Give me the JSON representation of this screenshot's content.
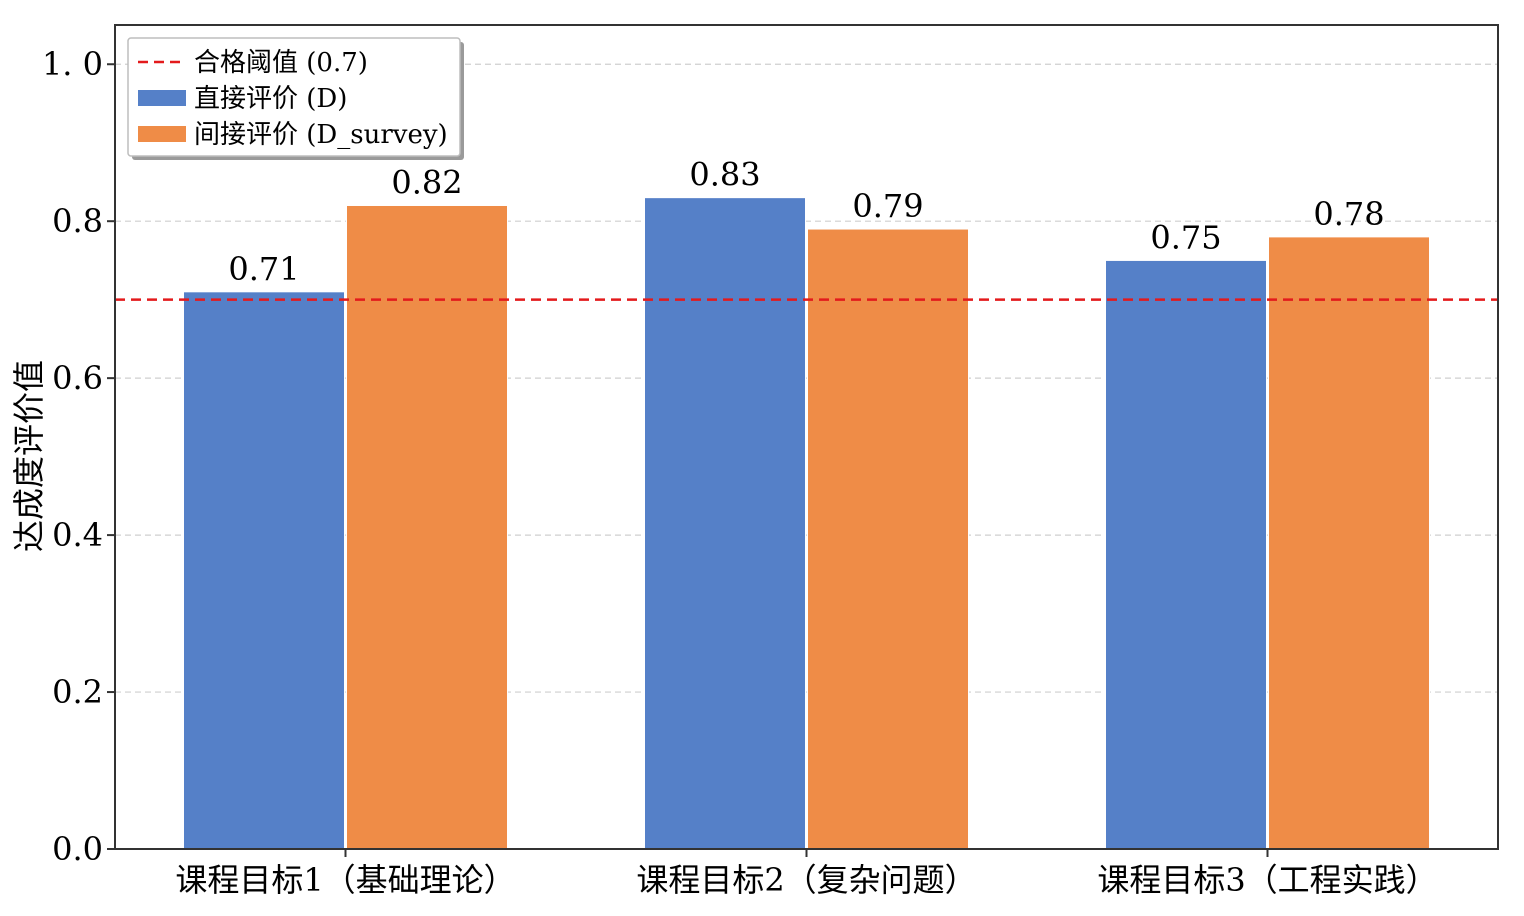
{
  "chart_data": {
    "type": "bar",
    "title": "",
    "xlabel": "",
    "ylabel": "达成度评价值",
    "categories": [
      "课程目标1（基础理论）",
      "课程目标2（复杂问题）",
      "课程目标3（工程实践）"
    ],
    "series": [
      {
        "name": "直接评价 (D)",
        "values": [
          0.71,
          0.83,
          0.75
        ],
        "color": "#5580c8",
        "labels": [
          "0.71",
          "0.83",
          "0.75"
        ]
      },
      {
        "name": "间接评价 (D_survey)",
        "values": [
          0.82,
          0.79,
          0.78
        ],
        "color": "#ef8c47",
        "labels": [
          "0.82",
          "0.79",
          "0.78"
        ]
      }
    ],
    "threshold": {
      "name": "合格阈值 (0.7)",
      "value": 0.7,
      "color": "#e31a1c",
      "style": "dashed"
    },
    "ylim": [
      0,
      1.05
    ],
    "yticks": [
      0.0,
      0.2,
      0.4,
      0.6,
      0.8,
      1.0
    ],
    "ytick_labels": [
      "0.0",
      "0.2",
      "0.4",
      "0.6",
      "0.8",
      "1. 0"
    ],
    "grid": {
      "y": true,
      "x": false,
      "style": "dashed"
    },
    "legend": {
      "position": "top-left"
    }
  }
}
